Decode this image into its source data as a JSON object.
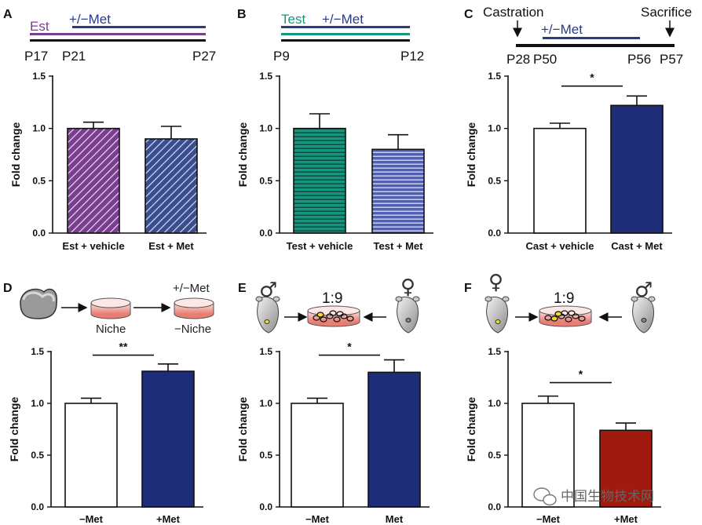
{
  "colors": {
    "est": "#7a3e8e",
    "met": "#2b3a84",
    "teal": "#15977f",
    "black": "#111111",
    "navy": "#1f2d78",
    "darkred": "#a11a10",
    "white": "#ffffff"
  },
  "axis": {
    "ylabel": "Fold change",
    "yticks": [
      "0.0",
      "0.5",
      "1.0",
      "1.5"
    ]
  },
  "panels": {
    "A": {
      "letter": "A",
      "est_label": "Est",
      "met_label": "+/−Met",
      "times": [
        "P17",
        "P21",
        "P27"
      ]
    },
    "B": {
      "letter": "B",
      "test_label": "Test",
      "met_label": "+/−Met",
      "times": [
        "P9",
        "P12"
      ]
    },
    "C": {
      "letter": "C",
      "castration_label": "Castration",
      "sacrifice_label": "Sacrifice",
      "met_label": "+/−Met",
      "times": [
        "P28",
        "P50",
        "P56",
        "P57"
      ]
    },
    "D": {
      "letter": "D",
      "niche_label": "Niche",
      "met_label": "+/−Met",
      "minus_niche_label": "−Niche"
    },
    "E": {
      "letter": "E",
      "ratio": "1:9",
      "male_symbol": "♂",
      "female_symbol": "♀"
    },
    "F": {
      "letter": "F",
      "ratio": "1:9",
      "female_symbol": "♀",
      "male_symbol": "♂"
    }
  },
  "chart_data": [
    {
      "panel": "A",
      "type": "bar",
      "ylabel": "Fold change",
      "ylim": [
        0,
        1.5
      ],
      "categories": [
        "Est + vehicle",
        "Est + Met"
      ],
      "values": [
        1.0,
        0.9
      ],
      "errors": [
        0.06,
        0.12
      ],
      "fills": [
        "purple-hatch",
        "blue-hatch"
      ],
      "significance": null
    },
    {
      "panel": "B",
      "type": "bar",
      "ylabel": "Fold change",
      "ylim": [
        0,
        1.5
      ],
      "categories": [
        "Test + vehicle",
        "Test + Met"
      ],
      "values": [
        1.0,
        0.8
      ],
      "errors": [
        0.14,
        0.14
      ],
      "fills": [
        "teal-stripe",
        "blue-stripe"
      ],
      "significance": null
    },
    {
      "panel": "C",
      "type": "bar",
      "ylabel": "Fold change",
      "ylim": [
        0,
        1.5
      ],
      "categories": [
        "Cast + vehicle",
        "Cast + Met"
      ],
      "values": [
        1.0,
        1.22
      ],
      "errors": [
        0.05,
        0.09
      ],
      "fills": [
        "#ffffff",
        "#1f2d78"
      ],
      "significance": "*"
    },
    {
      "panel": "D",
      "type": "bar",
      "ylabel": "Fold change",
      "ylim": [
        0,
        1.5
      ],
      "categories": [
        "−Met",
        "+Met"
      ],
      "values": [
        1.0,
        1.31
      ],
      "errors": [
        0.05,
        0.07
      ],
      "fills": [
        "#ffffff",
        "#1f2d78"
      ],
      "significance": "**"
    },
    {
      "panel": "E",
      "type": "bar",
      "ylabel": "Fold change",
      "ylim": [
        0,
        1.5
      ],
      "categories": [
        "−Met",
        "Met"
      ],
      "values": [
        1.0,
        1.3
      ],
      "errors": [
        0.05,
        0.12
      ],
      "fills": [
        "#ffffff",
        "#1f2d78"
      ],
      "significance": "*"
    },
    {
      "panel": "F",
      "type": "bar",
      "ylabel": "Fold change",
      "ylim": [
        0,
        1.5
      ],
      "categories": [
        "−Met",
        "+Met"
      ],
      "values": [
        1.0,
        0.74
      ],
      "errors": [
        0.07,
        0.07
      ],
      "fills": [
        "#ffffff",
        "#a11a10"
      ],
      "significance": "*"
    }
  ],
  "watermark": "中国生物技术网"
}
